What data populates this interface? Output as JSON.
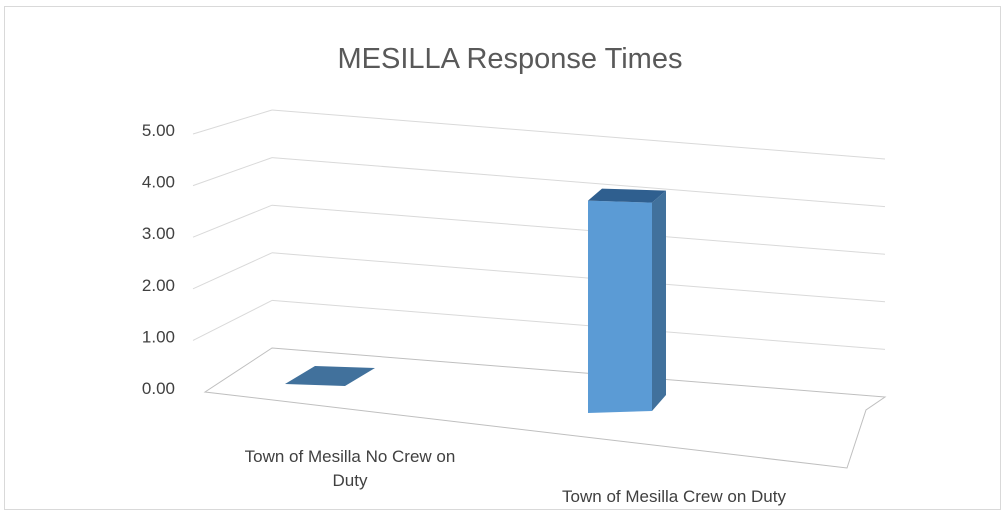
{
  "chart_data": {
    "type": "bar",
    "title": "MESILLA Response Times",
    "categories": [
      "Town of Mesilla No Crew on Duty",
      "Town of Mesilla Crew on Duty"
    ],
    "category_lines": [
      [
        "Town of Mesilla No Crew on",
        "Duty"
      ],
      [
        "Town of Mesilla Crew on Duty"
      ]
    ],
    "values": [
      0.0,
      4.2
    ],
    "ylim": [
      0,
      5
    ],
    "y_ticks": [
      "0.00",
      "1.00",
      "2.00",
      "3.00",
      "4.00",
      "5.00"
    ],
    "grid": true,
    "legend": "none",
    "style": "3d-column",
    "colors": {
      "bar_front": "#5b9bd5",
      "bar_side": "#41719c",
      "bar_top": "#2f5f8f",
      "grid": "#d9d9d9",
      "floor": "#bfbfbf"
    }
  }
}
